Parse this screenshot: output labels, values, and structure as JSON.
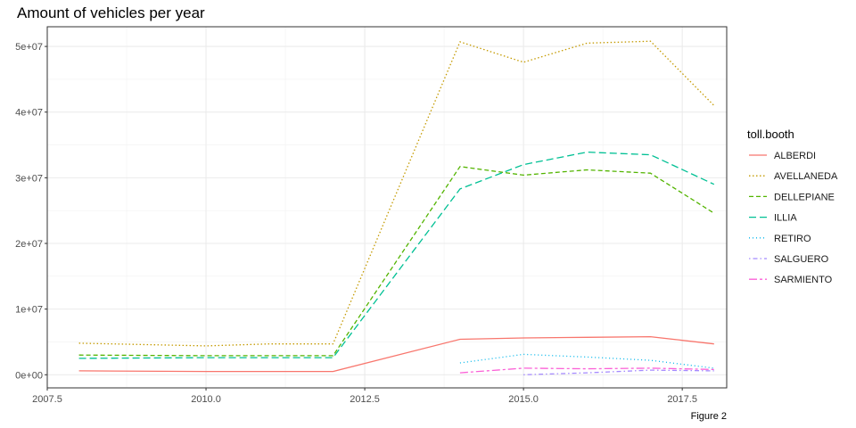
{
  "chart_data": {
    "type": "line",
    "title": "Amount of vehicles per year",
    "caption": "Figure 2",
    "xlabel": "",
    "ylabel": "",
    "xlim": [
      2007.5,
      2018.2
    ],
    "ylim": [
      -2000000,
      53000000
    ],
    "x_ticks": [
      2007.5,
      2010.0,
      2012.5,
      2015.0,
      2017.5
    ],
    "x_tick_labels": [
      "2007.5",
      "2010.0",
      "2012.5",
      "2015.0",
      "2017.5"
    ],
    "y_ticks": [
      0,
      10000000,
      20000000,
      30000000,
      40000000,
      50000000
    ],
    "y_tick_labels": [
      "0e+00",
      "1e+07",
      "2e+07",
      "3e+07",
      "4e+07",
      "5e+07"
    ],
    "grid": true,
    "legend": {
      "title": "toll.booth",
      "position": "right"
    },
    "series": [
      {
        "name": "ALBERDI",
        "color": "#F8766D",
        "dash": "solid",
        "x": [
          2008,
          2010,
          2012,
          2014,
          2015,
          2016,
          2017,
          2018
        ],
        "values": [
          600000,
          500000,
          500000,
          5400000,
          5600000,
          5700000,
          5800000,
          4700000
        ]
      },
      {
        "name": "AVELLANEDA",
        "color": "#C49A00",
        "dash": "dotted",
        "x": [
          2008,
          2010,
          2011,
          2012,
          2014,
          2015,
          2016,
          2017,
          2018
        ],
        "values": [
          4800000,
          4400000,
          4700000,
          4700000,
          50700000,
          47600000,
          50500000,
          50800000,
          41000000
        ]
      },
      {
        "name": "DELLEPIANE",
        "color": "#53B400",
        "dash": "dashed",
        "x": [
          2008,
          2010,
          2012,
          2014,
          2015,
          2016,
          2017,
          2018
        ],
        "values": [
          3000000,
          2900000,
          2900000,
          31700000,
          30400000,
          31200000,
          30700000,
          24600000
        ]
      },
      {
        "name": "ILLIA",
        "color": "#00C094",
        "dash": "longdash",
        "x": [
          2008,
          2010,
          2012,
          2014,
          2015,
          2016,
          2017,
          2018
        ],
        "values": [
          2500000,
          2600000,
          2600000,
          28300000,
          32000000,
          33900000,
          33500000,
          29000000
        ]
      },
      {
        "name": "RETIRO",
        "color": "#00B6EB",
        "dash": "finedot",
        "x": [
          2014,
          2015,
          2016,
          2017,
          2018
        ],
        "values": [
          1800000,
          3100000,
          2700000,
          2200000,
          1000000
        ]
      },
      {
        "name": "SALGUERO",
        "color": "#A58AFF",
        "dash": "dotdash",
        "x": [
          2015,
          2016,
          2017,
          2018
        ],
        "values": [
          0,
          300000,
          700000,
          600000
        ]
      },
      {
        "name": "SARMIENTO",
        "color": "#FB61D7",
        "dash": "twodash",
        "x": [
          2014,
          2015,
          2016,
          2017,
          2018
        ],
        "values": [
          300000,
          1000000,
          900000,
          1000000,
          800000
        ]
      }
    ]
  }
}
